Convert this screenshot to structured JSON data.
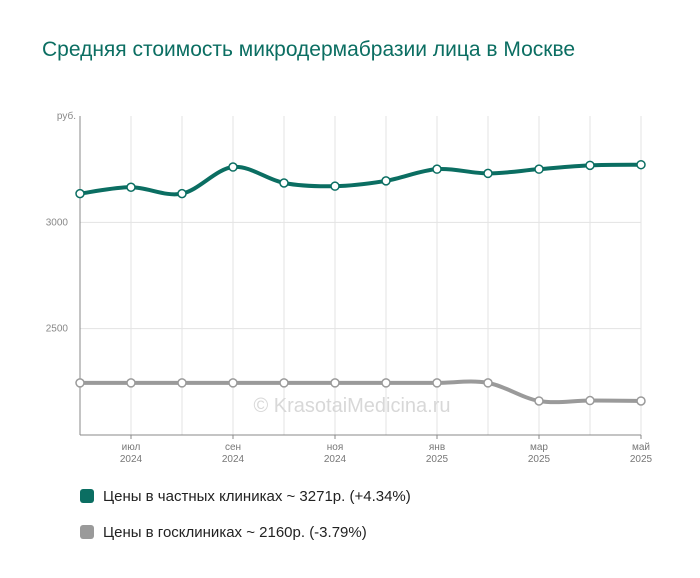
{
  "chart_data": {
    "type": "line",
    "title": "Средняя стоимость микродермабразии лица в Москве",
    "y_unit_label": "руб.",
    "ylim": [
      2000,
      3500
    ],
    "y_ticks": [
      2500,
      3000
    ],
    "x_ticks": [
      {
        "i": 1,
        "line1": "июл",
        "line2": "2024"
      },
      {
        "i": 3,
        "line1": "сен",
        "line2": "2024"
      },
      {
        "i": 5,
        "line1": "ноя",
        "line2": "2024"
      },
      {
        "i": 7,
        "line1": "янв",
        "line2": "2025"
      },
      {
        "i": 9,
        "line1": "мар",
        "line2": "2025"
      },
      {
        "i": 11,
        "line1": "май",
        "line2": "2025"
      }
    ],
    "grid": true,
    "watermark": "© KrasotaiMedicina.ru",
    "series": [
      {
        "name": "Цены в частных клиниках ~ 3271р. (+4.34%)",
        "color": "#0b6e62",
        "values": [
          3135,
          3165,
          3135,
          3260,
          3185,
          3170,
          3195,
          3250,
          3230,
          3250,
          3268,
          3271
        ]
      },
      {
        "name": "Цены в госклиниках ~ 2160р. (-3.79%)",
        "color": "#9a9a9a",
        "values": [
          2245,
          2245,
          2245,
          2245,
          2245,
          2245,
          2245,
          2245,
          2245,
          2160,
          2162,
          2160
        ]
      }
    ]
  }
}
